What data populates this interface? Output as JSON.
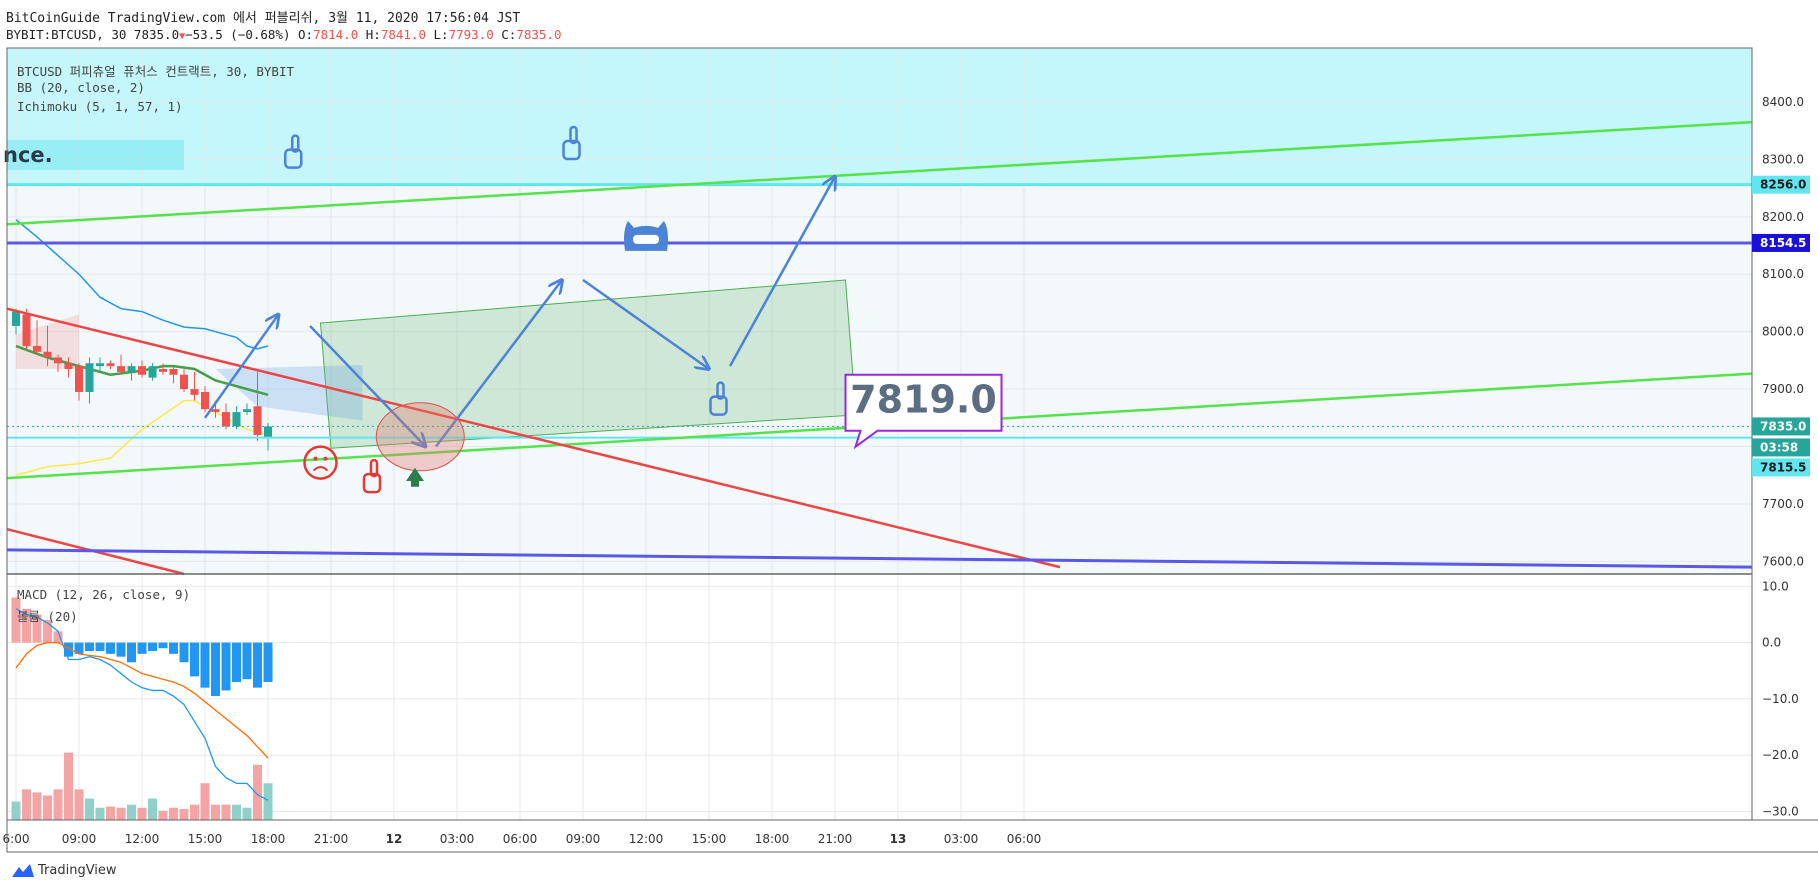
{
  "header": {
    "line1": "BitCoinGuide TradingView.com 에서 퍼블리쉬, 3월 11, 2020 17:56:04 JST",
    "symbol": "BYBIT:BTCUSD, 30 7835.0",
    "change": "−53.5 (−0.68%)",
    "o_label": "O:",
    "o_value": "7814.0",
    "h_label": "H:",
    "h_value": "7841.0",
    "l_label": "L:",
    "l_value": "7793.0",
    "c_label": "C:",
    "c_value": "7835.0"
  },
  "legend": {
    "line1": "BTCUSD 퍼피츄얼 퓨처스 컨트랙트, 30, BYBIT",
    "line2": "BB (20, close, 2)",
    "line3": "Ichimoku (5, 1, 57, 1)",
    "macd": "MACD (12, 26, close, 9)",
    "volume": "볼륨 (20)"
  },
  "note_text": "nce.",
  "callout": "7819.0",
  "footer": {
    "brand": "TradingView"
  },
  "colors": {
    "up": "#26a69a",
    "down": "#ef5350",
    "upVol": "#8fd0c8",
    "downVol": "#f4a4a4",
    "cyanZone": "#c4f7fb",
    "green": "#55e34b",
    "red": "#ef4444",
    "blue": "#5b57e8",
    "arrow": "#4c83d6",
    "cyanLine": "#61e6f0",
    "macdBar": "#2196f3"
  },
  "chart_data": {
    "type": "candlestick",
    "price_axis": {
      "ticks": [
        8400,
        8300,
        8200,
        8100,
        8000,
        7900,
        7800,
        7700,
        7600
      ],
      "ylim": [
        7578,
        8494
      ]
    },
    "price_labels": [
      {
        "value": 8256.0,
        "text": "8256.0",
        "color": "#61e6f0"
      },
      {
        "value": 8154.5,
        "text": "8154.5",
        "color": "#1a10d8"
      },
      {
        "value": 7835.0,
        "text": "7835.0",
        "color": "#26a69a"
      },
      {
        "value": 7800.0,
        "text": "03:58",
        "color": "#26a69a"
      },
      {
        "value": 7815.5,
        "text": "7815.5",
        "color": "#61e6f0"
      }
    ],
    "time_axis": {
      "labels": [
        "6:00",
        "09:00",
        "12:00",
        "15:00",
        "18:00",
        "21:00",
        "12",
        "03:00",
        "06:00",
        "09:00",
        "12:00",
        "15:00",
        "18:00",
        "21:00",
        "13",
        "03:00",
        "06:00"
      ],
      "bold": [
        "12",
        "13"
      ],
      "bars_per_label": 6,
      "first_label_bar": 0
    },
    "candles": [
      {
        "o": 8010,
        "h": 8040,
        "l": 7995,
        "c": 8035
      },
      {
        "o": 8030,
        "h": 8040,
        "l": 7970,
        "c": 7975
      },
      {
        "o": 7975,
        "h": 8020,
        "l": 7960,
        "c": 7965
      },
      {
        "o": 7965,
        "h": 8010,
        "l": 7940,
        "c": 7955
      },
      {
        "o": 7955,
        "h": 7960,
        "l": 7930,
        "c": 7945
      },
      {
        "o": 7945,
        "h": 7955,
        "l": 7920,
        "c": 7935
      },
      {
        "o": 7940,
        "h": 7945,
        "l": 7880,
        "c": 7895
      },
      {
        "o": 7895,
        "h": 7955,
        "l": 7875,
        "c": 7945
      },
      {
        "o": 7940,
        "h": 7955,
        "l": 7930,
        "c": 7945
      },
      {
        "o": 7945,
        "h": 7950,
        "l": 7935,
        "c": 7940
      },
      {
        "o": 7940,
        "h": 7960,
        "l": 7925,
        "c": 7930
      },
      {
        "o": 7930,
        "h": 7945,
        "l": 7915,
        "c": 7940
      },
      {
        "o": 7940,
        "h": 7950,
        "l": 7920,
        "c": 7925
      },
      {
        "o": 7920,
        "h": 7945,
        "l": 7915,
        "c": 7940
      },
      {
        "o": 7935,
        "h": 7945,
        "l": 7925,
        "c": 7930
      },
      {
        "o": 7935,
        "h": 7940,
        "l": 7910,
        "c": 7925
      },
      {
        "o": 7925,
        "h": 7935,
        "l": 7895,
        "c": 7900
      },
      {
        "o": 7900,
        "h": 7930,
        "l": 7880,
        "c": 7890
      },
      {
        "o": 7895,
        "h": 7905,
        "l": 7860,
        "c": 7865
      },
      {
        "o": 7865,
        "h": 7880,
        "l": 7850,
        "c": 7860
      },
      {
        "o": 7860,
        "h": 7875,
        "l": 7830,
        "c": 7835
      },
      {
        "o": 7835,
        "h": 7870,
        "l": 7830,
        "c": 7860
      },
      {
        "o": 7860,
        "h": 7875,
        "l": 7855,
        "c": 7865
      },
      {
        "o": 7870,
        "h": 7930,
        "l": 7810,
        "c": 7820
      },
      {
        "o": 7814,
        "h": 7841,
        "l": 7793,
        "c": 7835
      }
    ],
    "volume_series": [
      3,
      5,
      4.5,
      4,
      5,
      11,
      5,
      3.5,
      2,
      2.2,
      2,
      2.5,
      2,
      3.5,
      1.5,
      2,
      1.8,
      2.5,
      6,
      2.5,
      2.5,
      2.5,
      2,
      9,
      6
    ],
    "overlays": {
      "bb_upper": [
        [
          0,
          8195
        ],
        [
          2,
          8165
        ],
        [
          6,
          8100
        ],
        [
          8,
          8060
        ],
        [
          10,
          8040
        ],
        [
          12,
          8035
        ],
        [
          14,
          8020
        ],
        [
          16,
          8008
        ],
        [
          18,
          8005
        ],
        [
          19,
          8000
        ],
        [
          20,
          7995
        ],
        [
          21,
          7990
        ],
        [
          22,
          7975
        ],
        [
          23,
          7970
        ],
        [
          24,
          7975
        ]
      ],
      "bb_middle": [
        [
          0,
          7975
        ],
        [
          3,
          7955
        ],
        [
          6,
          7940
        ],
        [
          9,
          7925
        ],
        [
          12,
          7932
        ],
        [
          14,
          7940
        ],
        [
          15,
          7940
        ],
        [
          17,
          7935
        ],
        [
          19,
          7915
        ],
        [
          21,
          7905
        ],
        [
          23,
          7895
        ],
        [
          24,
          7890
        ]
      ],
      "ichimoku_yellow": [
        [
          0,
          7750
        ],
        [
          3,
          7765
        ],
        [
          6,
          7770
        ],
        [
          9,
          7780
        ],
        [
          12,
          7830
        ],
        [
          14,
          7855
        ],
        [
          16,
          7880
        ],
        [
          17,
          7880
        ],
        [
          18,
          7870
        ],
        [
          20,
          7850
        ],
        [
          22,
          7830
        ],
        [
          24,
          7820
        ]
      ]
    },
    "macd": {
      "axis_ticks": [
        10,
        0,
        -10,
        -20,
        -30
      ],
      "ylim": [
        -31.5,
        12
      ],
      "histogram": [
        8,
        6,
        5,
        4,
        2,
        -2.5,
        -2,
        -1.5,
        -1.5,
        -2,
        -2.5,
        -3.5,
        -2,
        -1.5,
        -1,
        -2,
        -3.5,
        -6,
        -8,
        -9.5,
        -8.5,
        -7,
        -6.5,
        -8,
        -7
      ],
      "macd_line": [
        6,
        5,
        4.5,
        3.5,
        2,
        -3,
        -3,
        -2.5,
        -3,
        -4,
        -5.5,
        -7,
        -8,
        -8.5,
        -8.5,
        -9.5,
        -11,
        -14,
        -17,
        -22,
        -24,
        -25,
        -25,
        -27,
        -28
      ],
      "signal_line": [
        -4.5,
        -2,
        -0.5,
        0,
        0,
        -1,
        -2,
        -2.3,
        -2.5,
        -3,
        -3.5,
        -4.5,
        -5.5,
        -6,
        -6.5,
        -7,
        -7.8,
        -9,
        -10.5,
        -12,
        -13.5,
        -15,
        -16.5,
        -18.5,
        -20.5
      ]
    }
  }
}
